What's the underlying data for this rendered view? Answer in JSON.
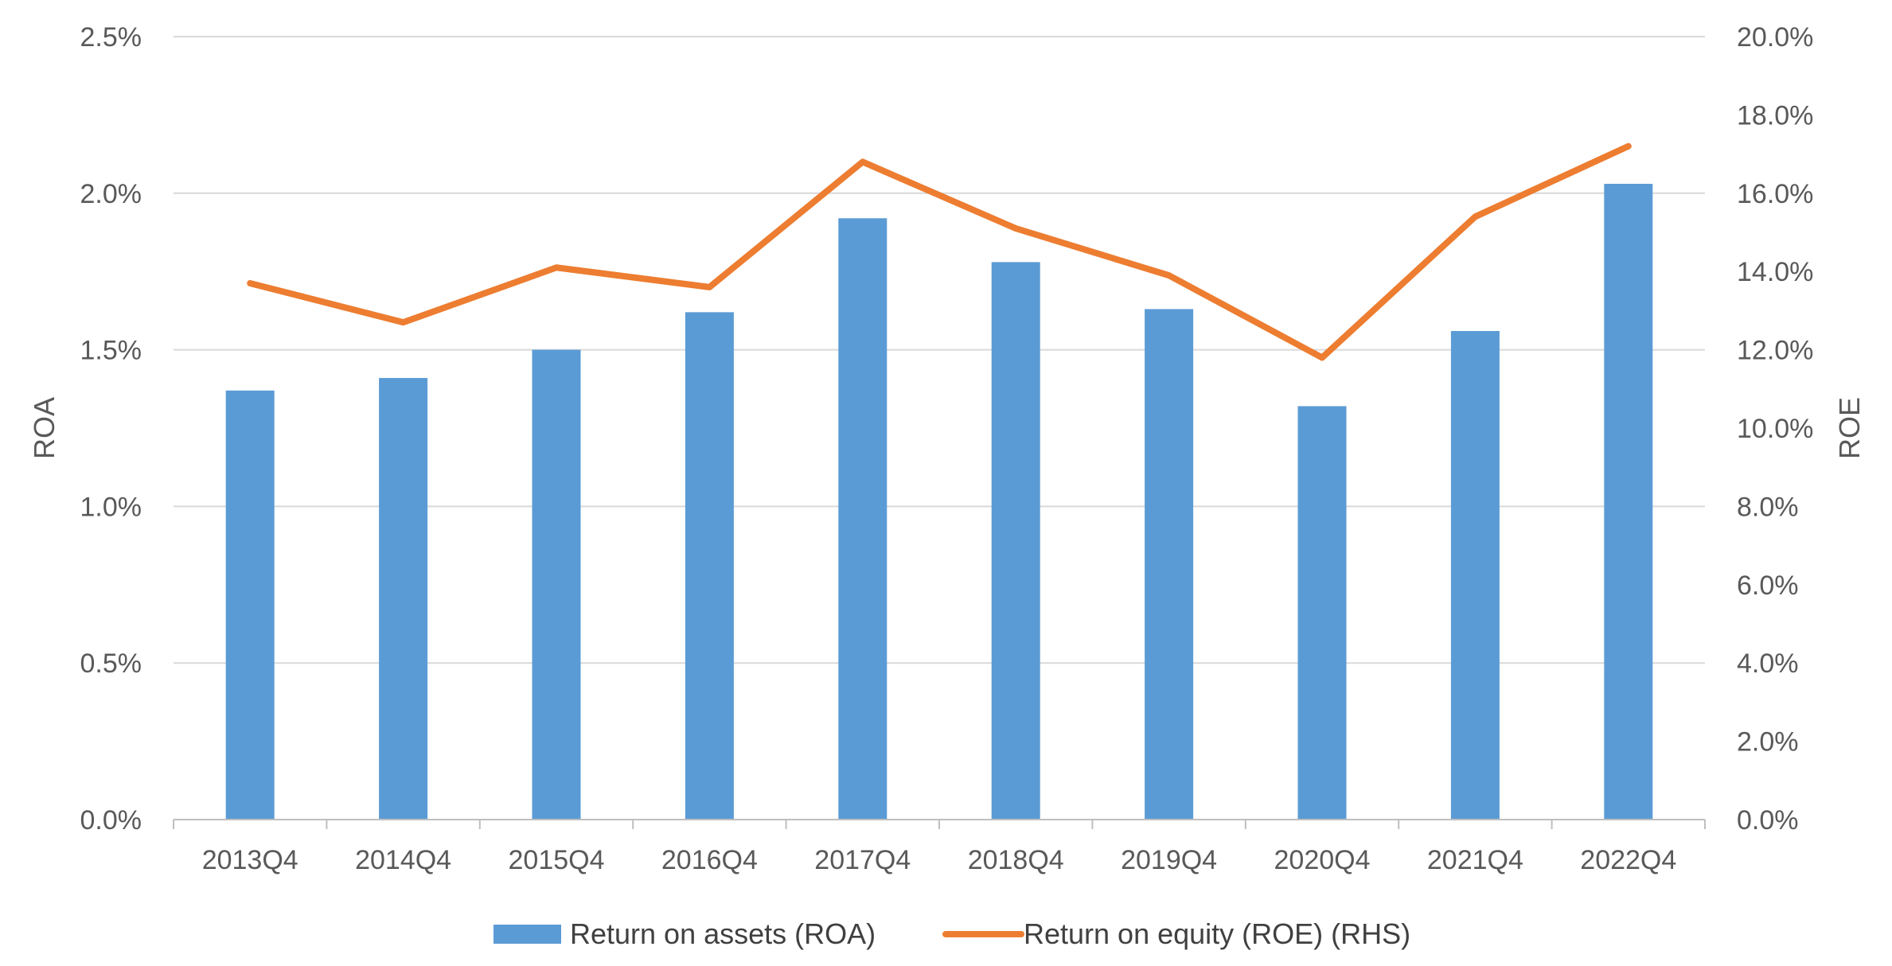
{
  "chart_data": {
    "type": "bar",
    "categories": [
      "2013Q4",
      "2014Q4",
      "2015Q4",
      "2016Q4",
      "2017Q4",
      "2018Q4",
      "2019Q4",
      "2020Q4",
      "2021Q4",
      "2022Q4"
    ],
    "series": [
      {
        "name": "Return on assets (ROA)",
        "type": "bar",
        "axis": "left",
        "color": "#5B9BD5",
        "values": [
          1.37,
          1.41,
          1.5,
          1.62,
          1.92,
          1.78,
          1.63,
          1.32,
          1.56,
          2.03
        ]
      },
      {
        "name": "Return on equity (ROE) (RHS)",
        "type": "line",
        "axis": "right",
        "color": "#ED7D31",
        "values": [
          13.7,
          12.7,
          14.1,
          13.6,
          16.8,
          15.1,
          13.9,
          11.8,
          15.4,
          17.2
        ]
      }
    ],
    "ylabel": "ROA",
    "y2label": "ROE",
    "ylim": [
      0,
      2.5
    ],
    "y2lim": [
      0,
      20
    ],
    "yticks": [
      "0.0%",
      "0.5%",
      "1.0%",
      "1.5%",
      "2.0%",
      "2.5%"
    ],
    "y2ticks": [
      "0.0%",
      "2.0%",
      "4.0%",
      "6.0%",
      "8.0%",
      "10.0%",
      "12.0%",
      "14.0%",
      "16.0%",
      "18.0%",
      "20.0%"
    ],
    "grid": true,
    "legend": "bottom"
  }
}
